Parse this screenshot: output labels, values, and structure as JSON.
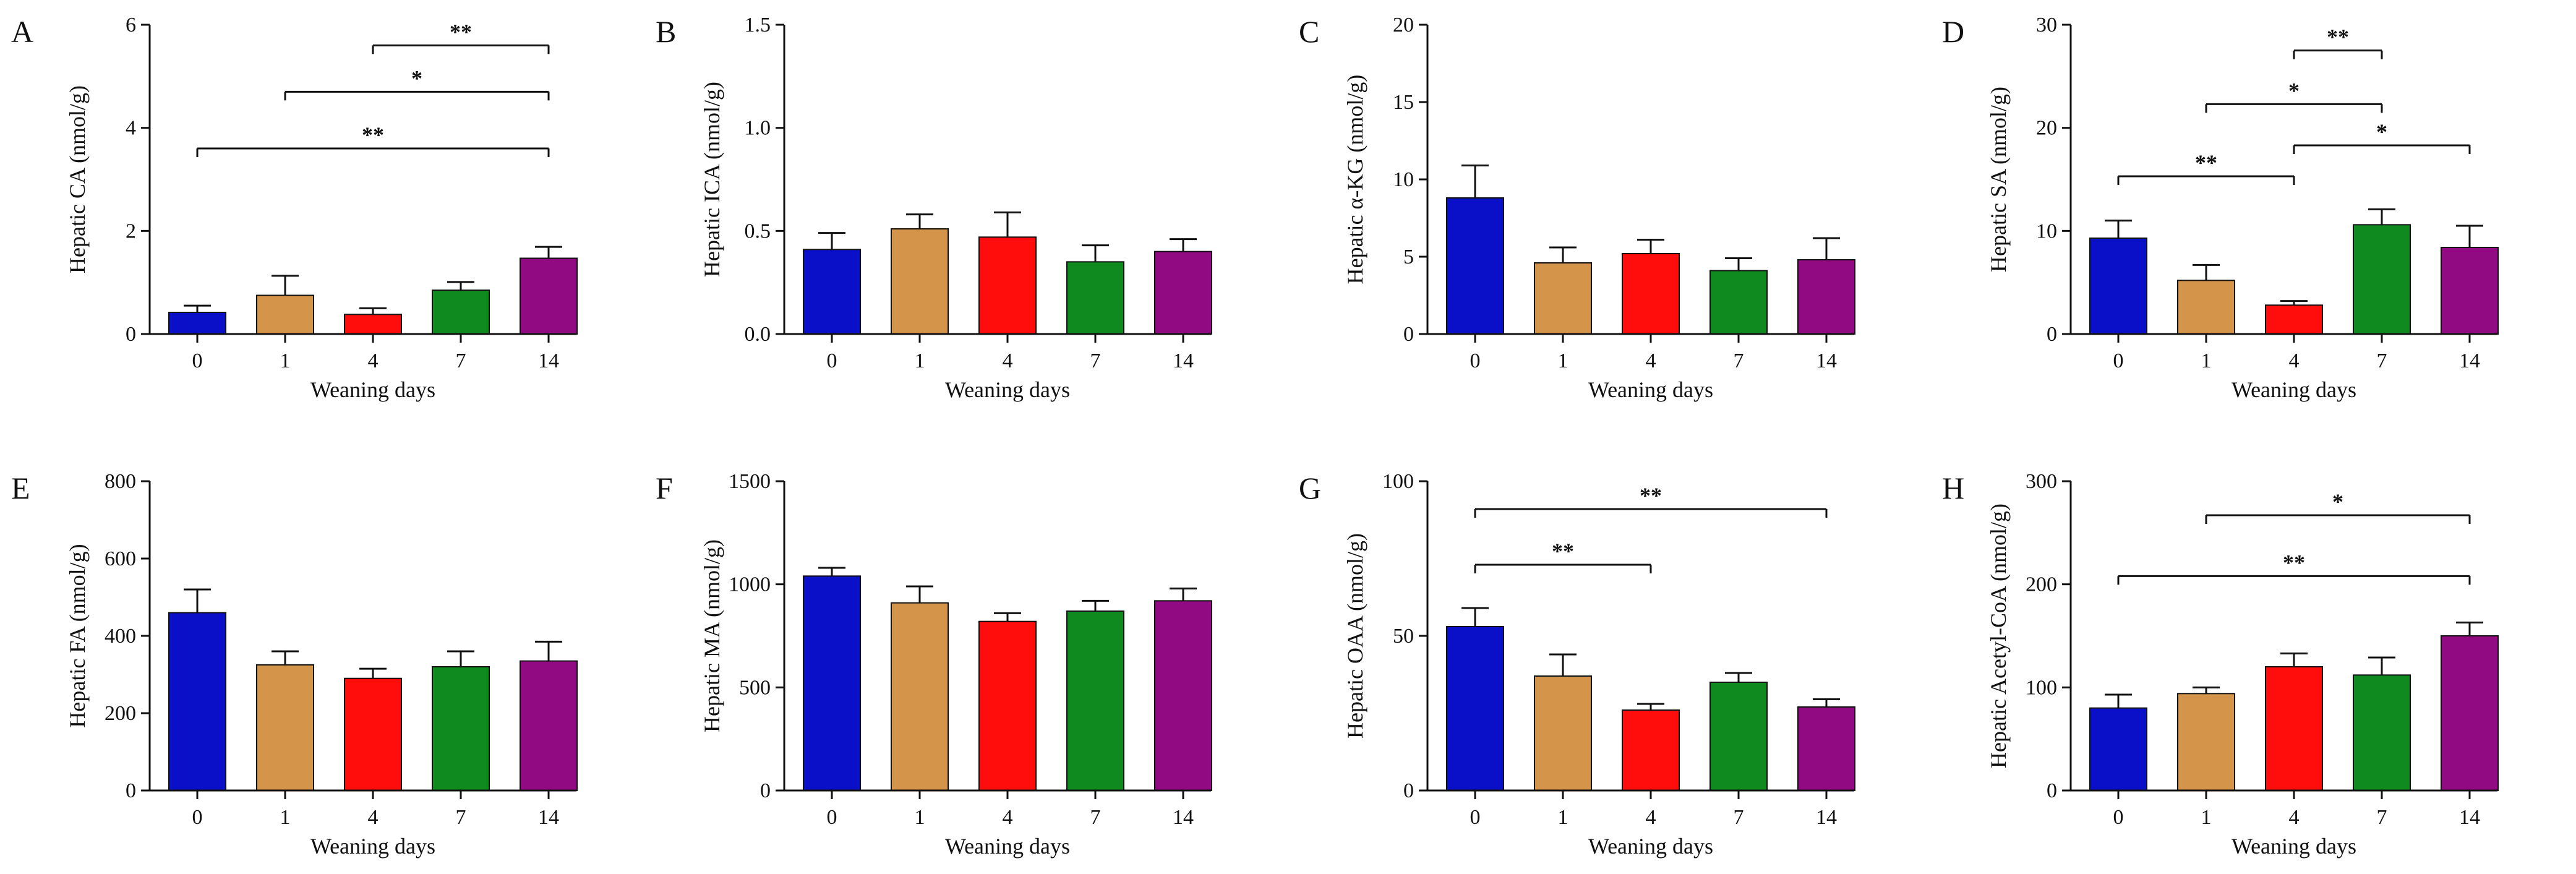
{
  "figure": {
    "colors": [
      "#0a10c8",
      "#d4944a",
      "#ff0d0d",
      "#0e8a1e",
      "#920a82"
    ]
  },
  "chart_data": [
    {
      "panel": "A",
      "type": "bar",
      "title": "",
      "xlabel": "Weaning days",
      "ylabel": "Hepatic CA (nmol/g)",
      "categories": [
        "0",
        "1",
        "4",
        "7",
        "14"
      ],
      "values": [
        0.42,
        0.75,
        0.38,
        0.85,
        1.47
      ],
      "errors": [
        0.13,
        0.38,
        0.12,
        0.16,
        0.22
      ],
      "ylim": [
        0,
        6
      ],
      "yticks": [
        "0",
        "2",
        "4",
        "6"
      ],
      "ytick_values": [
        0,
        2,
        4,
        6
      ],
      "significance": [
        {
          "from": 2,
          "to": 4,
          "label": "**",
          "y": 5.6
        },
        {
          "from": 1,
          "to": 4,
          "label": "*",
          "y": 4.7
        },
        {
          "from": 0,
          "to": 4,
          "label": "**",
          "y": 3.6
        }
      ]
    },
    {
      "panel": "B",
      "type": "bar",
      "title": "",
      "xlabel": "Weaning days",
      "ylabel": "Hepatic ICA (nmol/g)",
      "categories": [
        "0",
        "1",
        "4",
        "7",
        "14"
      ],
      "values": [
        0.41,
        0.51,
        0.47,
        0.35,
        0.4
      ],
      "errors": [
        0.08,
        0.07,
        0.12,
        0.08,
        0.06
      ],
      "ylim": [
        0,
        1.5
      ],
      "yticks": [
        "0.0",
        "0.5",
        "1.0",
        "1.5"
      ],
      "ytick_values": [
        0,
        0.5,
        1.0,
        1.5
      ],
      "significance": []
    },
    {
      "panel": "C",
      "type": "bar",
      "title": "",
      "xlabel": "Weaning days",
      "ylabel": "Hepatic α-KG (nmol/g)",
      "categories": [
        "0",
        "1",
        "4",
        "7",
        "14"
      ],
      "values": [
        8.8,
        4.6,
        5.2,
        4.1,
        4.8
      ],
      "errors": [
        2.1,
        1.0,
        0.9,
        0.8,
        1.4
      ],
      "ylim": [
        0,
        20
      ],
      "yticks": [
        "0",
        "5",
        "10",
        "15",
        "20"
      ],
      "ytick_values": [
        0,
        5,
        10,
        15,
        20
      ],
      "significance": []
    },
    {
      "panel": "D",
      "type": "bar",
      "title": "",
      "xlabel": "Weaning days",
      "ylabel": "Hepatic SA (nmol/g)",
      "categories": [
        "0",
        "1",
        "4",
        "7",
        "14"
      ],
      "values": [
        9.3,
        5.2,
        2.8,
        10.6,
        8.4
      ],
      "errors": [
        1.7,
        1.5,
        0.4,
        1.5,
        2.1
      ],
      "ylim": [
        0,
        30
      ],
      "yticks": [
        "0",
        "10",
        "20",
        "30"
      ],
      "ytick_values": [
        0,
        10,
        20,
        30
      ],
      "significance": [
        {
          "from": 2,
          "to": 3,
          "label": "**",
          "y": 27.5
        },
        {
          "from": 1,
          "to": 3,
          "label": "*",
          "y": 22.3
        },
        {
          "from": 2,
          "to": 4,
          "label": "*",
          "y": 18.3
        },
        {
          "from": 0,
          "to": 2,
          "label": "**",
          "y": 15.3
        }
      ]
    },
    {
      "panel": "E",
      "type": "bar",
      "title": "",
      "xlabel": "Weaning days",
      "ylabel": "Hepatic FA (nmol/g)",
      "categories": [
        "0",
        "1",
        "4",
        "7",
        "14"
      ],
      "values": [
        460,
        325,
        290,
        320,
        335
      ],
      "errors": [
        60,
        35,
        25,
        40,
        50
      ],
      "ylim": [
        0,
        800
      ],
      "yticks": [
        "0",
        "200",
        "400",
        "600",
        "800"
      ],
      "ytick_values": [
        0,
        200,
        400,
        600,
        800
      ],
      "significance": []
    },
    {
      "panel": "F",
      "type": "bar",
      "title": "",
      "xlabel": "Weaning days",
      "ylabel": "Hepatic MA (nmol/g)",
      "categories": [
        "0",
        "1",
        "4",
        "7",
        "14"
      ],
      "values": [
        1040,
        910,
        820,
        870,
        920
      ],
      "errors": [
        40,
        80,
        40,
        50,
        60
      ],
      "ylim": [
        0,
        1500
      ],
      "yticks": [
        "0",
        "500",
        "1000",
        "1500"
      ],
      "ytick_values": [
        0,
        500,
        1000,
        1500
      ],
      "significance": []
    },
    {
      "panel": "G",
      "type": "bar",
      "title": "",
      "xlabel": "Weaning days",
      "ylabel": "Hepatic OAA (nmol/g)",
      "categories": [
        "0",
        "1",
        "4",
        "7",
        "14"
      ],
      "values": [
        53,
        37,
        26,
        35,
        27
      ],
      "errors": [
        6,
        7,
        2,
        3,
        2.5
      ],
      "ylim": [
        0,
        100
      ],
      "yticks": [
        "0",
        "50",
        "100"
      ],
      "ytick_values": [
        0,
        50,
        100
      ],
      "significance": [
        {
          "from": 0,
          "to": 4,
          "label": "**",
          "y": 91
        },
        {
          "from": 0,
          "to": 2,
          "label": "**",
          "y": 73
        }
      ]
    },
    {
      "panel": "H",
      "type": "bar",
      "title": "",
      "xlabel": "Weaning days",
      "ylabel": "Hepatic Acetyl-CoA (nmol/g)",
      "categories": [
        "0",
        "1",
        "4",
        "7",
        "14"
      ],
      "values": [
        80,
        94,
        120,
        112,
        150
      ],
      "errors": [
        13,
        6,
        13,
        17,
        13
      ],
      "ylim": [
        0,
        300
      ],
      "yticks": [
        "0",
        "100",
        "200",
        "300"
      ],
      "ytick_values": [
        0,
        100,
        200,
        300
      ],
      "significance": [
        {
          "from": 1,
          "to": 4,
          "label": "*",
          "y": 267
        },
        {
          "from": 0,
          "to": 4,
          "label": "**",
          "y": 208
        }
      ]
    }
  ]
}
